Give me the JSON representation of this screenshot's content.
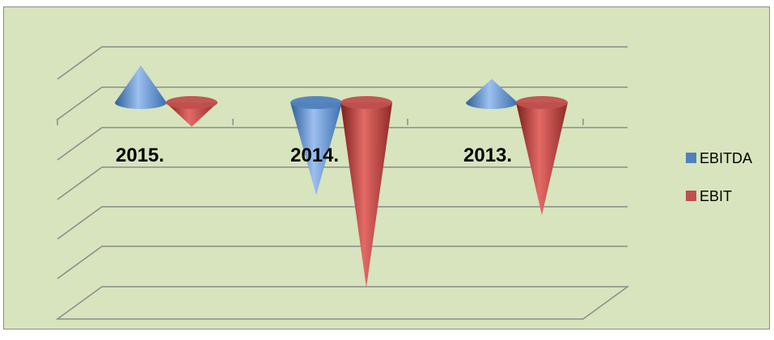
{
  "chart_data": {
    "type": "bar",
    "shape": "cone-3d",
    "categories": [
      "2015.",
      "2014.",
      "2013."
    ],
    "series": [
      {
        "name": "EBITDA",
        "color": "#4f81bd",
        "values": [
          1.1,
          -2.3,
          0.7
        ]
      },
      {
        "name": "EBIT",
        "color": "#c0504d",
        "values": [
          -0.6,
          -4.6,
          -2.8
        ]
      }
    ],
    "title": "",
    "xlabel": "",
    "ylabel": "",
    "ylim": [
      -4.6,
      1.1
    ],
    "grid": true,
    "legend_position": "right"
  }
}
